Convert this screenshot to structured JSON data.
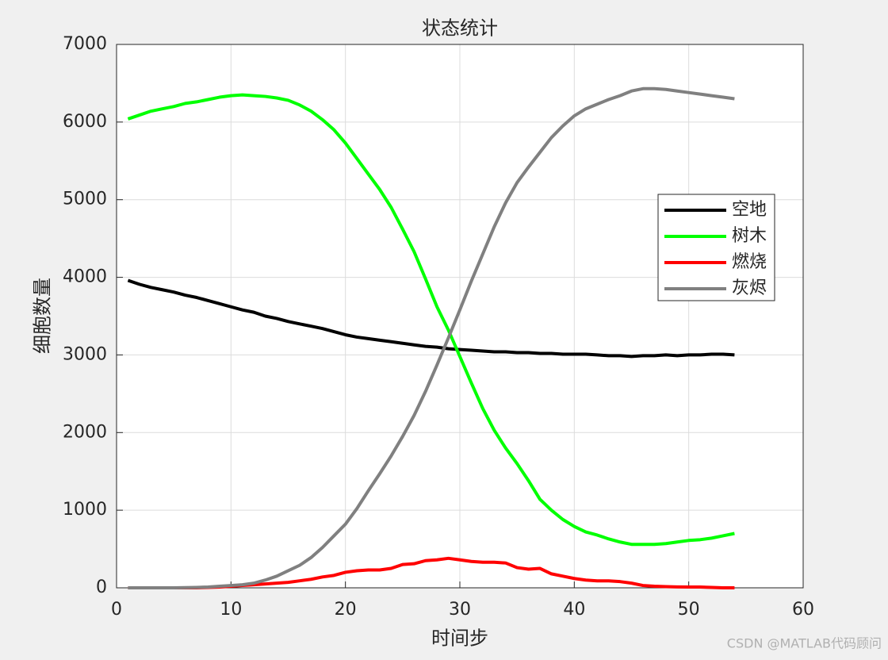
{
  "chart_data": {
    "type": "line",
    "title": "状态统计",
    "xlabel": "时间步",
    "ylabel": "细胞数量",
    "x": [
      1,
      2,
      3,
      4,
      5,
      6,
      7,
      8,
      9,
      10,
      11,
      12,
      13,
      14,
      15,
      16,
      17,
      18,
      19,
      20,
      21,
      22,
      23,
      24,
      25,
      26,
      27,
      28,
      29,
      30,
      31,
      32,
      33,
      34,
      35,
      36,
      37,
      38,
      39,
      40,
      41,
      42,
      43,
      44,
      45,
      46,
      47,
      48,
      49,
      50,
      51,
      52,
      53,
      54
    ],
    "series": [
      {
        "name": "空地",
        "color": "#000000",
        "values": [
          3960,
          3910,
          3870,
          3840,
          3810,
          3770,
          3740,
          3700,
          3660,
          3620,
          3580,
          3550,
          3500,
          3470,
          3430,
          3400,
          3370,
          3340,
          3300,
          3260,
          3230,
          3210,
          3190,
          3170,
          3150,
          3130,
          3110,
          3100,
          3080,
          3070,
          3060,
          3050,
          3040,
          3040,
          3030,
          3030,
          3020,
          3020,
          3010,
          3010,
          3010,
          3000,
          2990,
          2990,
          2980,
          2990,
          2990,
          3000,
          2990,
          3000,
          3000,
          3010,
          3010,
          3000
        ]
      },
      {
        "name": "树木",
        "color": "#00ff00",
        "values": [
          6040,
          6090,
          6140,
          6170,
          6200,
          6240,
          6260,
          6290,
          6320,
          6340,
          6350,
          6340,
          6330,
          6310,
          6280,
          6220,
          6140,
          6030,
          5900,
          5730,
          5530,
          5330,
          5130,
          4900,
          4620,
          4330,
          3980,
          3620,
          3320,
          2980,
          2640,
          2310,
          2030,
          1800,
          1600,
          1380,
          1140,
          1000,
          880,
          790,
          720,
          680,
          630,
          590,
          560,
          560,
          560,
          570,
          590,
          610,
          620,
          640,
          670,
          700
        ]
      },
      {
        "name": "燃烧",
        "color": "#ff0000",
        "values": [
          0,
          0,
          0,
          0,
          0,
          0,
          0,
          5,
          10,
          20,
          30,
          40,
          50,
          60,
          70,
          90,
          110,
          140,
          160,
          200,
          220,
          230,
          230,
          250,
          300,
          310,
          350,
          360,
          380,
          360,
          340,
          330,
          330,
          320,
          260,
          240,
          250,
          180,
          150,
          120,
          100,
          90,
          90,
          80,
          60,
          30,
          20,
          15,
          12,
          10,
          10,
          5,
          0,
          0
        ]
      },
      {
        "name": "灰烬",
        "color": "#808080",
        "values": [
          0,
          0,
          0,
          0,
          0,
          2,
          5,
          10,
          20,
          30,
          40,
          60,
          100,
          150,
          220,
          290,
          390,
          520,
          670,
          820,
          1020,
          1250,
          1470,
          1700,
          1950,
          2220,
          2530,
          2870,
          3220,
          3580,
          3950,
          4300,
          4650,
          4960,
          5220,
          5420,
          5610,
          5800,
          5950,
          6080,
          6170,
          6230,
          6290,
          6340,
          6400,
          6430,
          6430,
          6420,
          6400,
          6380,
          6360,
          6340,
          6320,
          6300
        ]
      }
    ],
    "xlim": [
      0,
      60
    ],
    "xticks": [
      0,
      10,
      20,
      30,
      40,
      50,
      60
    ],
    "ylim": [
      0,
      7000
    ],
    "yticks": [
      0,
      1000,
      2000,
      3000,
      4000,
      5000,
      6000,
      7000
    ],
    "grid": true,
    "legend": "right",
    "watermark": "CSDN @MATLAB代码顾问"
  }
}
